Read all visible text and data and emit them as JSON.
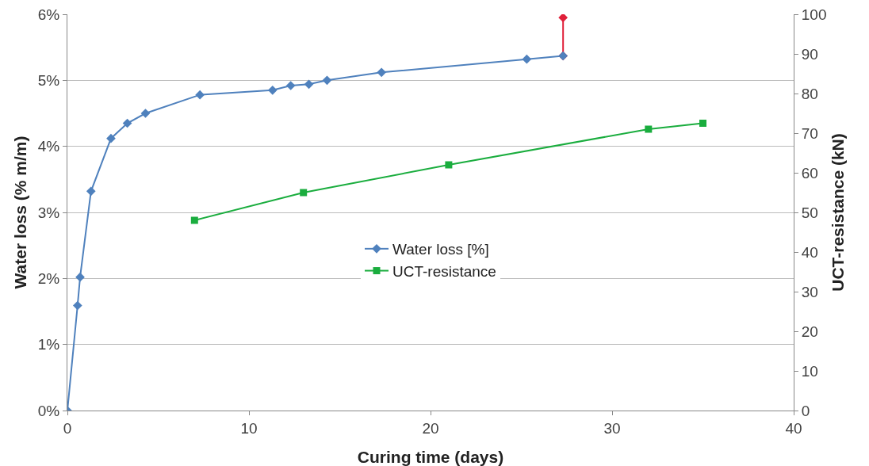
{
  "chart_data": {
    "type": "line",
    "xlabel": "Curing time (days)",
    "ylabel": "Water loss (% m/m)",
    "y2label": "UCT-resistance (kN)",
    "xlim": [
      0,
      40
    ],
    "xticks": [
      0,
      10,
      20,
      30,
      40
    ],
    "ylim": [
      0,
      6
    ],
    "yticks": [
      {
        "value": 0,
        "label": "0%"
      },
      {
        "value": 1,
        "label": "1%"
      },
      {
        "value": 2,
        "label": "2%"
      },
      {
        "value": 3,
        "label": "3%"
      },
      {
        "value": 4,
        "label": "4%"
      },
      {
        "value": 5,
        "label": "5%"
      },
      {
        "value": 6,
        "label": "6%"
      }
    ],
    "y2lim": [
      0,
      100
    ],
    "y2ticks": [
      0,
      10,
      20,
      30,
      40,
      50,
      60,
      70,
      80,
      90,
      100
    ],
    "grid": "y",
    "legend": "center",
    "line_style": "solid",
    "series": [
      {
        "color": "#e0203a",
        "marker": "diamond",
        "x": [
          27.3,
          27.3
        ],
        "values": [
          5.37,
          5.95
        ]
      },
      {
        "name": "Water loss [%]",
        "color": "#4f81bd",
        "marker": "diamond",
        "x": [
          0,
          0.56,
          0.7,
          1.3,
          2.4,
          3.3,
          4.3,
          7.3,
          11.3,
          12.3,
          13.3,
          14.3,
          17.3,
          25.3,
          27.3
        ],
        "values": [
          0,
          1.59,
          2.02,
          3.32,
          4.12,
          4.35,
          4.5,
          4.78,
          4.85,
          4.92,
          4.94,
          5.0,
          5.12,
          5.32,
          5.37
        ]
      },
      {
        "name": "UCT-resistance",
        "color": "#1aad3e",
        "marker": "square",
        "axis": "y2",
        "x": [
          7,
          13,
          21,
          32,
          35
        ],
        "values": [
          48,
          55,
          62,
          71,
          72.5
        ]
      }
    ]
  }
}
